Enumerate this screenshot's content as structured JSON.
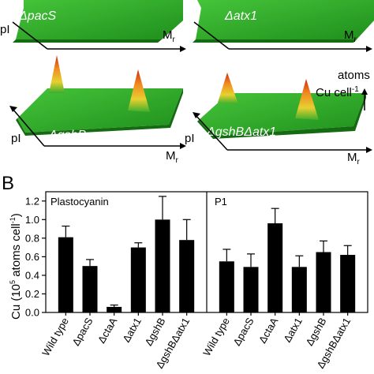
{
  "panel_a": {
    "units_label": {
      "line1": "atoms",
      "line2": "Cu cell",
      "sup": "-1"
    },
    "axis_pi": "pI",
    "axis_mr": "M",
    "axis_mr_sub": "r",
    "maps": [
      {
        "prefix": "Δ",
        "name": "pacS"
      },
      {
        "prefix": "Δ",
        "name": "atx1"
      },
      {
        "prefix": "Δ",
        "name": "gshB"
      },
      {
        "prefix": "Δ",
        "name": "gshBΔatx1"
      }
    ],
    "colors": {
      "surface": "#2fa82a",
      "surface_dark": "#1c7a18",
      "peak_mid": "#e0c020",
      "peak_top": "#d02a10"
    }
  },
  "panel_b": {
    "letter": "B",
    "ylabel_prefix": "Cu (10",
    "ylabel_sup": "5",
    "ylabel_mid": " atoms cell",
    "ylabel_sup2": "-1",
    "ylabel_suffix": ")"
  },
  "chart_data": {
    "type": "bar",
    "ylabel": "Cu (10^5 atoms cell^-1)",
    "ylim": [
      0,
      1.3
    ],
    "yticks": [
      "0.0",
      "0.2",
      "0.4",
      "0.6",
      "0.8",
      "1.0",
      "1.2"
    ],
    "categories": [
      "Wild type",
      "ΔpacS",
      "ΔctaA",
      "Δatx1",
      "ΔgshB",
      "ΔgshBΔatx1"
    ],
    "groups": [
      {
        "name": "Plastocyanin",
        "values": [
          0.81,
          0.5,
          0.06,
          0.7,
          1.0,
          0.78
        ],
        "errors": [
          0.12,
          0.07,
          0.02,
          0.05,
          0.25,
          0.22
        ]
      },
      {
        "name": "P1",
        "values": [
          0.55,
          0.49,
          0.96,
          0.49,
          0.65,
          0.62
        ],
        "errors": [
          0.13,
          0.14,
          0.16,
          0.12,
          0.12,
          0.1
        ]
      }
    ],
    "bar_color": "#000000"
  }
}
